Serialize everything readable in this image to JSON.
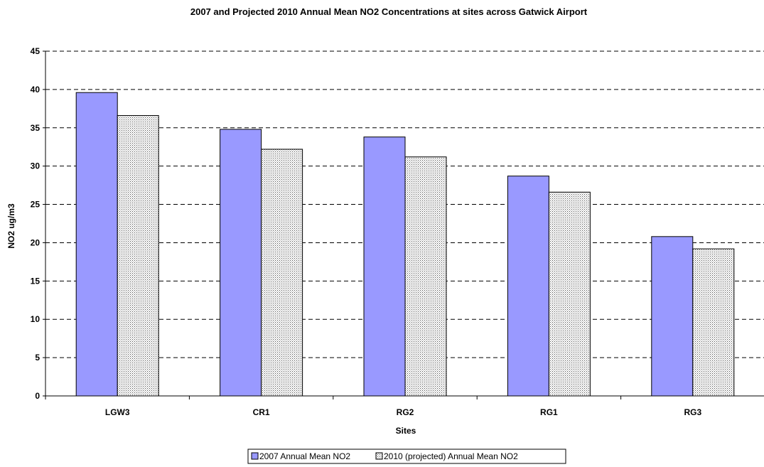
{
  "chart_data": {
    "type": "bar",
    "title": "2007 and Projected 2010 Annual Mean NO2 Concentrations at sites across Gatwick Airport",
    "xlabel": "Sites",
    "ylabel": "NO2 ug/m3",
    "categories": [
      "LGW3",
      "CR1",
      "RG2",
      "RG1",
      "RG3"
    ],
    "series": [
      {
        "name": "2007 Annual Mean NO2",
        "values": [
          39.6,
          34.8,
          33.8,
          28.7,
          20.8
        ],
        "color": "#9999ff",
        "pattern": "solid"
      },
      {
        "name": "2010 (projected) Annual Mean NO2",
        "values": [
          36.6,
          32.2,
          31.2,
          26.6,
          19.2
        ],
        "color": "#ffffff",
        "pattern": "dots"
      }
    ],
    "ylim": [
      0,
      45
    ],
    "yticks": [
      "0",
      "5",
      "10",
      "15",
      "20",
      "25",
      "30",
      "35",
      "40",
      "45"
    ],
    "grid": true,
    "legend_position": "bottom"
  }
}
